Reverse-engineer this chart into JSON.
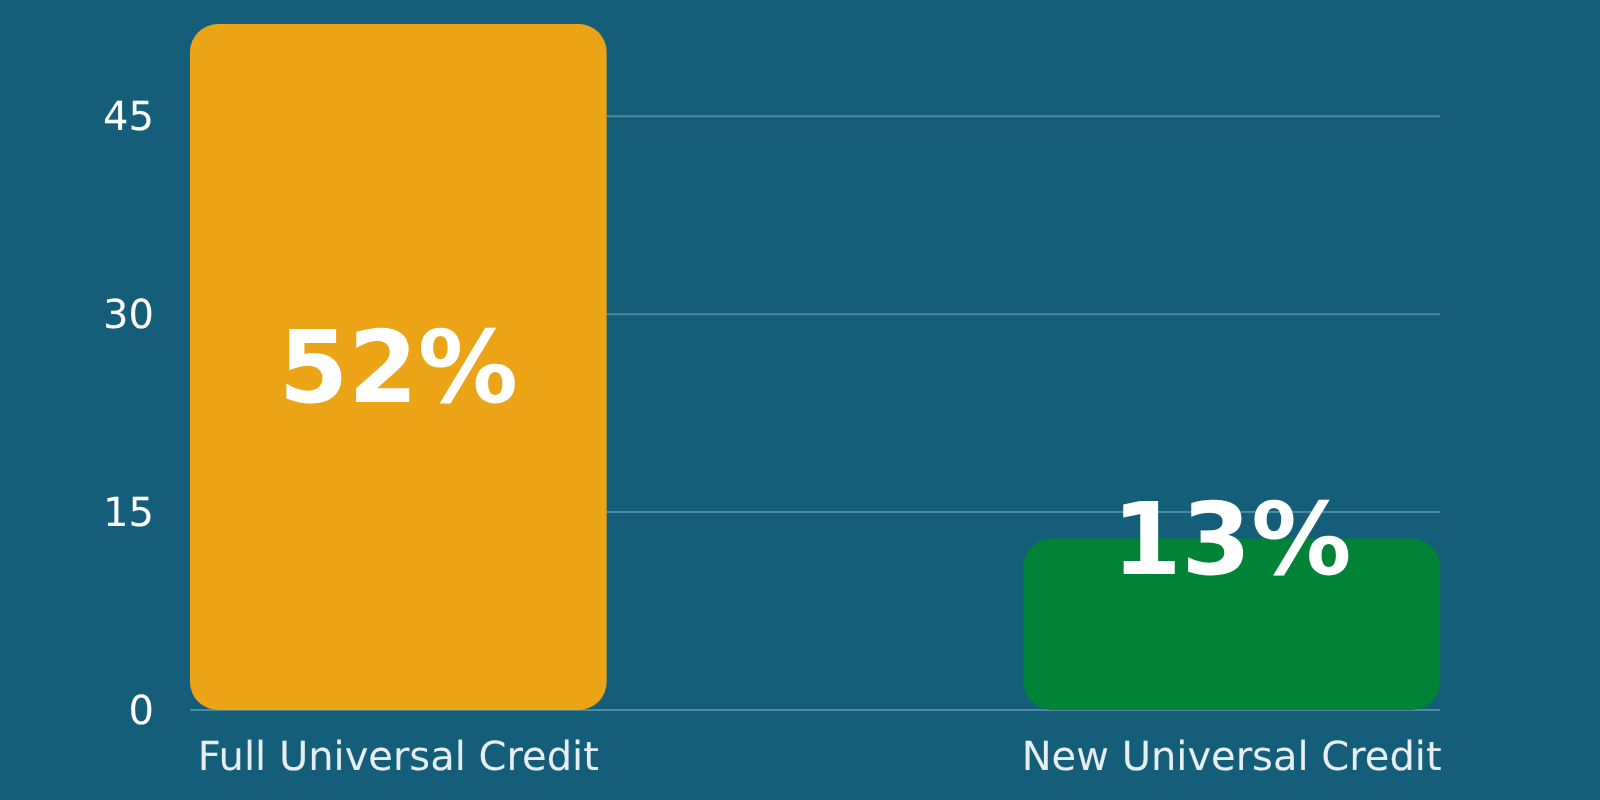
{
  "chart_data": {
    "type": "bar",
    "categories": [
      "Full Universal Credit",
      "New Universal Credit"
    ],
    "values": [
      52,
      13
    ],
    "colors": [
      "#eba415",
      "#008237"
    ],
    "value_labels": [
      "52%",
      "13%"
    ],
    "ylim": [
      0,
      52
    ],
    "yticks": [
      0,
      15,
      30,
      45
    ],
    "grid": "y"
  }
}
